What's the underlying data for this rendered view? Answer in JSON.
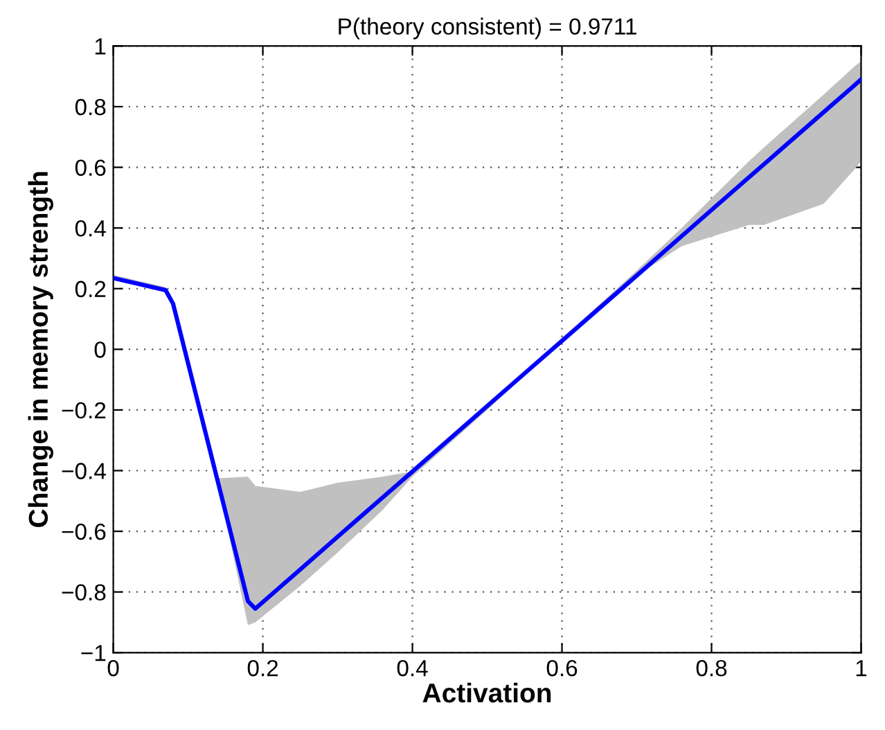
{
  "chart_data": {
    "type": "line",
    "title": "P(theory consistent) = 0.9711",
    "xlabel": "Activation",
    "ylabel": "Change in memory strength",
    "x": [
      0,
      0.07,
      0.08,
      0.14,
      0.18,
      0.19,
      0.25,
      0.3,
      0.36,
      0.4,
      0.5,
      0.6,
      0.7,
      0.76,
      0.85,
      0.87,
      0.95,
      0.99,
      1
    ],
    "series": [
      {
        "color": "#0000ff",
        "values": [
          0.235,
          0.195,
          0.15,
          -0.438,
          -0.83,
          -0.855,
          -0.726,
          -0.618,
          -0.489,
          -0.403,
          -0.187,
          0.028,
          0.243,
          0.373,
          0.567,
          0.61,
          0.782,
          0.868,
          0.89
        ],
        "lower": [
          0.235,
          0.195,
          0.15,
          -0.44,
          -0.91,
          -0.9,
          -0.78,
          -0.67,
          -0.53,
          -0.42,
          -0.2,
          0.028,
          0.243,
          0.34,
          0.41,
          0.41,
          0.48,
          0.59,
          0.62
        ],
        "upper": [
          0.245,
          0.205,
          0.15,
          -0.425,
          -0.42,
          -0.45,
          -0.47,
          -0.44,
          -0.42,
          -0.403,
          -0.18,
          0.035,
          0.26,
          0.4,
          0.62,
          0.665,
          0.84,
          0.93,
          0.95
        ]
      }
    ],
    "xlim": [
      0,
      1
    ],
    "ylim": [
      -1,
      1
    ],
    "xticks": [
      0,
      0.2,
      0.4,
      0.6,
      0.8,
      1
    ],
    "yticks": [
      {
        "value": -1,
        "label": "−1"
      },
      {
        "value": -0.8,
        "label": "−0.8"
      },
      {
        "value": -0.6,
        "label": "−0.6"
      },
      {
        "value": -0.4,
        "label": "−0.4"
      },
      {
        "value": -0.2,
        "label": "−0.2"
      },
      0,
      0.2,
      0.4,
      0.6,
      0.8,
      1
    ],
    "grid": true,
    "line_style": "solid",
    "marker": "none"
  }
}
